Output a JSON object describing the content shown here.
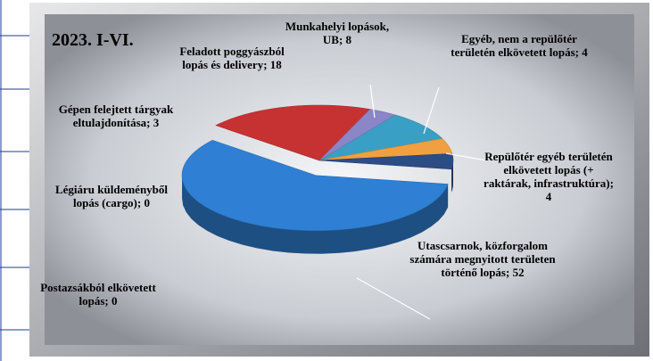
{
  "chart_data": {
    "type": "pie3d",
    "title": "2023. I-VI.",
    "categories": [
      "Munkahelyi lopások, UB; 8",
      "Egyéb, nem a repülőtér területén elkövetett lopás; 4",
      "Repülőtér egyéb területén elkövetett lopás (+ raktárak, infrastruktúra); 4",
      "Utascsarnok, közforgalom számára megnyitott területen történő lopás; 52",
      "Postazsákból elkövetett lopás; 0",
      "Légiáru küldeményből lopás (cargo); 0",
      "Feladott poggyászból lopás és delivery; 18",
      "Gépen felejtett tárgyak eltulajdonítása; 3"
    ],
    "values": [
      8,
      4,
      4,
      52,
      0,
      0,
      18,
      3
    ],
    "colors": [
      "#3a9fc4",
      "#f0a040",
      "#2c4c86",
      "#2f80d4",
      "#9a9a9a",
      "#7a7a7a",
      "#c63232",
      "#8a86c8"
    ]
  }
}
